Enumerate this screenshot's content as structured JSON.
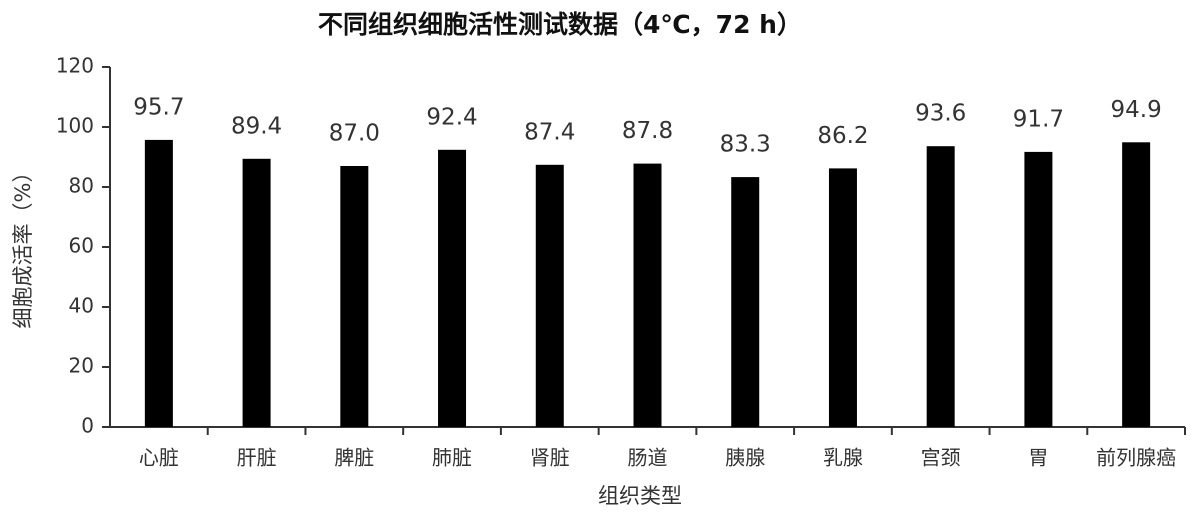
{
  "chart_data": {
    "type": "bar",
    "title": "不同组织细胞活性测试数据（4℃，72 h）",
    "x_label": "组织类型",
    "y_label": "细胞成活率（%）",
    "categories": [
      "心脏",
      "肝脏",
      "脾脏",
      "肺脏",
      "肾脏",
      "肠道",
      "胰腺",
      "乳腺",
      "宫颈",
      "胃",
      "前列腺癌"
    ],
    "values": [
      95.7,
      89.4,
      87.0,
      92.4,
      87.4,
      87.8,
      83.3,
      86.2,
      93.6,
      91.7,
      94.9
    ],
    "value_labels": [
      "95.7",
      "89.4",
      "87.0",
      "92.4",
      "87.4",
      "87.8",
      "83.3",
      "86.2",
      "93.6",
      "91.7",
      "94.9"
    ],
    "color": "#000000",
    "ylim": [
      0,
      120
    ],
    "yticks": [
      0,
      20,
      40,
      60,
      80,
      100,
      120
    ],
    "grid": false
  }
}
